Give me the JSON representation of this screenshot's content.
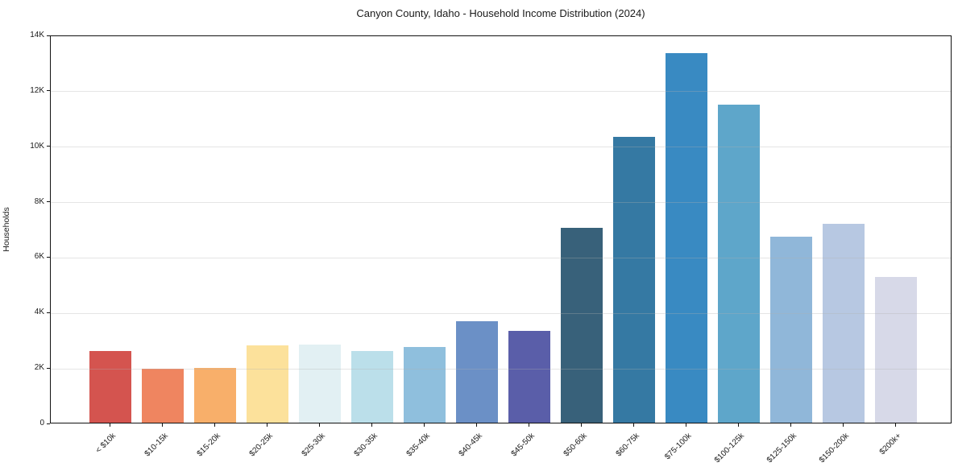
{
  "title": "Canyon County, Idaho - Household Income Distribution (2024)",
  "chart_data": {
    "type": "bar",
    "title": "Canyon County, Idaho - Household Income Distribution (2024)",
    "xlabel": "",
    "ylabel": "Households",
    "ylim": [
      0,
      14000
    ],
    "grid": true,
    "legend": false,
    "categories": [
      "< $10k",
      "$10-15k",
      "$15-20k",
      "$20-25k",
      "$25-30k",
      "$30-35k",
      "$35-40k",
      "$40-45k",
      "$45-50k",
      "$50-60k",
      "$60-75k",
      "$75-100k",
      "$100-125k",
      "$125-150k",
      "$150-200k",
      "$200k+"
    ],
    "values": [
      2600,
      1950,
      1970,
      2800,
      2830,
      2580,
      2720,
      3650,
      3300,
      7020,
      10320,
      13330,
      11480,
      6720,
      7190,
      5250
    ],
    "bar_colors": [
      "#d4544f",
      "#ef8560",
      "#f8af6a",
      "#fce19b",
      "#e2f0f3",
      "#bbdfea",
      "#8fbfdd",
      "#6b90c6",
      "#5a5ea9",
      "#38617a",
      "#3579a3",
      "#398ac2",
      "#5ea6ca",
      "#90b7d9",
      "#b7c8e2",
      "#d7d9e8"
    ],
    "yticks": [
      0,
      2000,
      4000,
      6000,
      8000,
      10000,
      12000,
      14000
    ],
    "ytick_labels": [
      "0",
      "2K",
      "4K",
      "6K",
      "8K",
      "10K",
      "12K",
      "14K"
    ],
    "axis_color": "#111111",
    "grid_color": "#e8e8e8"
  }
}
